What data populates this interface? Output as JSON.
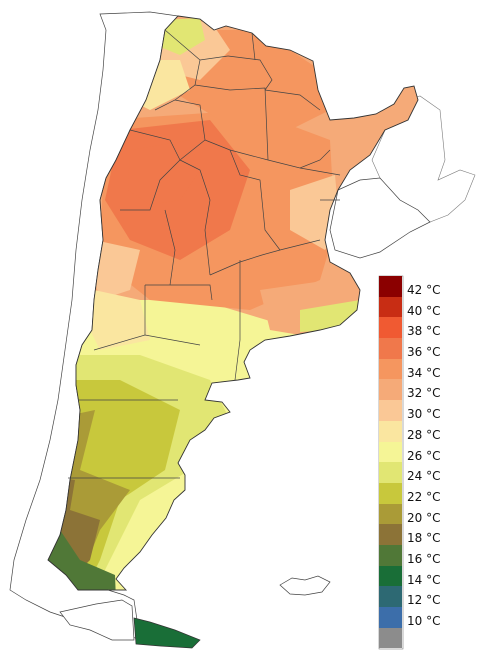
{
  "legend": {
    "items": [
      {
        "label": "42 °C",
        "color": "#8b0000"
      },
      {
        "label": "40 °C",
        "color": "#c82d14"
      },
      {
        "label": "38 °C",
        "color": "#f05a32"
      },
      {
        "label": "36 °C",
        "color": "#f0784b"
      },
      {
        "label": "34 °C",
        "color": "#f5965f"
      },
      {
        "label": "32 °C",
        "color": "#f5aa78"
      },
      {
        "label": "30 °C",
        "color": "#fac896"
      },
      {
        "label": "28 °C",
        "color": "#fae6a0"
      },
      {
        "label": "26 °C",
        "color": "#f5f596"
      },
      {
        "label": "24 °C",
        "color": "#e1e673"
      },
      {
        "label": "22 °C",
        "color": "#c8c83c"
      },
      {
        "label": "20 °C",
        "color": "#aa9b37"
      },
      {
        "label": "18 °C",
        "color": "#8c7337"
      },
      {
        "label": "16 °C",
        "color": "#507837"
      },
      {
        "label": "14 °C",
        "color": "#196e37"
      },
      {
        "label": "12 °C",
        "color": "#2d6973"
      },
      {
        "label": "10 °C",
        "color": "#3c6eaa"
      },
      {
        "label": "",
        "color": "#8c8c8c"
      }
    ]
  }
}
